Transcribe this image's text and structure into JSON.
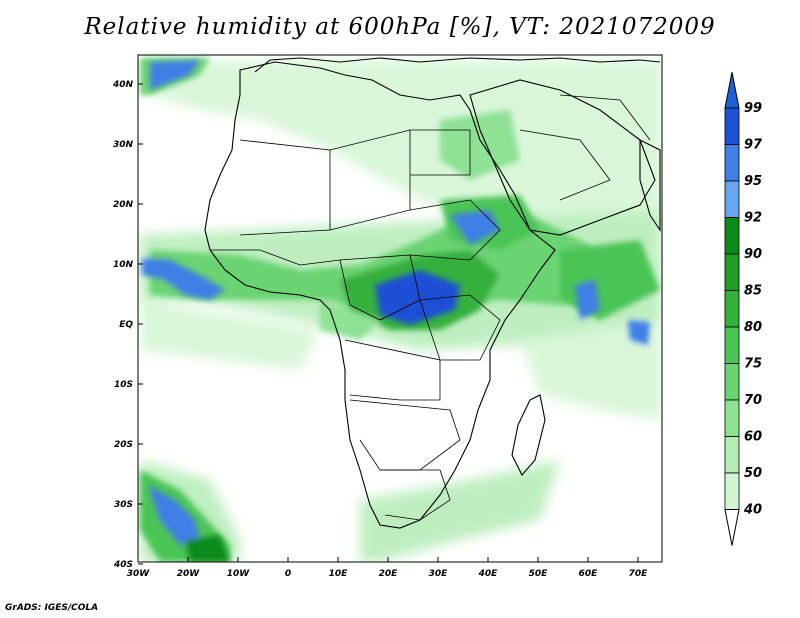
{
  "title": "Relative humidity at 600hPa [%], VT: 2021072009",
  "credit": "GrADS: IGES/COLA",
  "lat_labels": [
    "40N",
    "30N",
    "20N",
    "10N",
    "EQ",
    "10S",
    "20S",
    "30S",
    "40S"
  ],
  "lon_labels": [
    "30W",
    "20W",
    "10W",
    "0",
    "10E",
    "20E",
    "30E",
    "40E",
    "50E",
    "60E",
    "70E"
  ],
  "colorbar": {
    "levels": [
      "99",
      "97",
      "95",
      "92",
      "90",
      "85",
      "80",
      "75",
      "70",
      "60",
      "50",
      "40"
    ],
    "colors": [
      "#1e50d6",
      "#3f7fe6",
      "#6aa6f0",
      "#0e8a1a",
      "#1f9c29",
      "#34b03c",
      "#4cc456",
      "#6ad372",
      "#8fe194",
      "#b3ecb5",
      "#d3f5d3",
      "#eefbee"
    ],
    "top_arrow_color": "#1f5fd6",
    "bottom_arrow_color": "#ffffff"
  },
  "map": {
    "extent": {
      "lon": [
        -30,
        75
      ],
      "lat": [
        -40,
        45
      ]
    },
    "land_outline_color": "#000000",
    "background": "#ffffff"
  }
}
